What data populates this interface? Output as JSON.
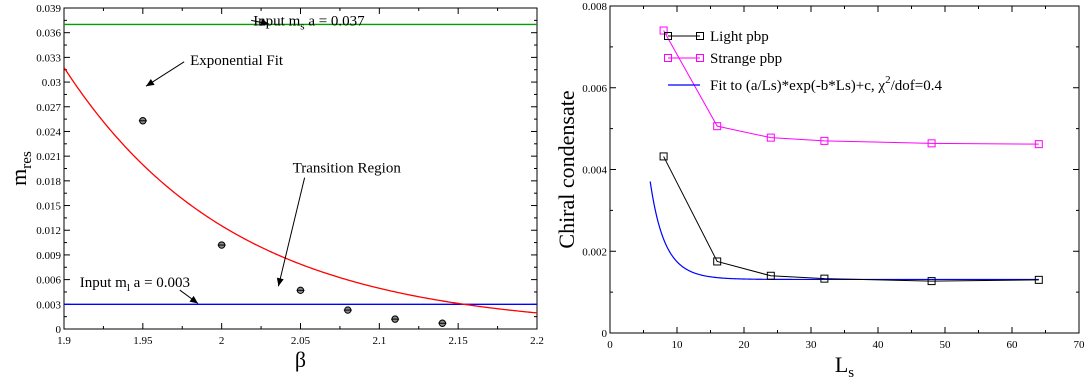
{
  "chart_data": [
    {
      "type": "scatter",
      "xlabel": "β",
      "ylabel_main": "m",
      "ylabel_sub": "res",
      "xlim": [
        1.9,
        2.2
      ],
      "ylim": [
        0,
        0.039
      ],
      "x_ticks": [
        1.9,
        1.95,
        2.0,
        2.05,
        2.1,
        2.15,
        2.2
      ],
      "x_tick_labels": [
        "1.9",
        "1.95",
        "2",
        "2.05",
        "2.1",
        "2.15",
        "2.2"
      ],
      "y_ticks": [
        0,
        0.003,
        0.006,
        0.009,
        0.012,
        0.015,
        0.018,
        0.021,
        0.024,
        0.027,
        0.03,
        0.033,
        0.036,
        0.039
      ],
      "y_tick_labels": [
        "0",
        "0.003",
        "0.006",
        "0.009",
        "0.012",
        "0.015",
        "0.018",
        "0.021",
        "0.024",
        "0.027",
        "0.03",
        "0.033",
        "0.036",
        "0.039"
      ],
      "points": [
        {
          "x": 1.95,
          "y": 0.0253
        },
        {
          "x": 2.0,
          "y": 0.0102
        },
        {
          "x": 2.05,
          "y": 0.0047
        },
        {
          "x": 2.08,
          "y": 0.0023
        },
        {
          "x": 2.11,
          "y": 0.0012
        },
        {
          "x": 2.14,
          "y": 0.0007
        }
      ],
      "fit_curve": {
        "color": "#ff0000",
        "a": 1500000,
        "b": 9.3
      },
      "hlines": [
        {
          "y": 0.037,
          "color": "#00a000"
        },
        {
          "y": 0.003,
          "color": "#0000ff"
        }
      ],
      "annotations": [
        {
          "pre": "Input m",
          "sub": "s",
          "post": "a = 0.037",
          "tx": 2.02,
          "ty": 0.0375,
          "ax": 2.03,
          "ay": 0.03705
        },
        {
          "pre": "Exponential Fit",
          "sub": "",
          "post": "",
          "tx": 1.98,
          "ty": 0.0327,
          "ax": 1.952,
          "ay": 0.0295
        },
        {
          "pre": "Transition Region",
          "sub": "",
          "post": "",
          "tx": 2.045,
          "ty": 0.0196,
          "ax": 2.036,
          "ay": 0.0052
        },
        {
          "pre": "Input m",
          "sub": "l",
          "post": "a = 0.003",
          "tx": 1.91,
          "ty": 0.0057,
          "ax": 1.985,
          "ay": 0.0031
        }
      ]
    },
    {
      "type": "line",
      "xlabel_main": "L",
      "xlabel_sub": "s",
      "ylabel": "Chiral condensate",
      "xlim": [
        0,
        70
      ],
      "ylim": [
        0,
        0.008
      ],
      "x_ticks": [
        0,
        10,
        20,
        30,
        40,
        50,
        60,
        70
      ],
      "x_tick_labels": [
        "0",
        "10",
        "20",
        "30",
        "40",
        "50",
        "60",
        "70"
      ],
      "y_ticks": [
        0,
        0.002,
        0.004,
        0.006,
        0.008
      ],
      "y_tick_labels": [
        "0",
        "0.002",
        "0.004",
        "0.006",
        "0.008"
      ],
      "series": [
        {
          "name": "Light pbp",
          "color": "#000000",
          "marker": "square",
          "x": [
            8,
            16,
            24,
            32,
            48,
            64
          ],
          "y": [
            0.00432,
            0.00175,
            0.0014,
            0.00133,
            0.00127,
            0.0013
          ]
        },
        {
          "name": "Strange pbp",
          "color": "#ff00ff",
          "marker": "square",
          "x": [
            8,
            16,
            24,
            32,
            48,
            64
          ],
          "y": [
            0.0074,
            0.00506,
            0.00478,
            0.0047,
            0.00464,
            0.00462
          ]
        }
      ],
      "fit": {
        "legend_pre": "Fit to (a/Ls)*exp(-b*Ls)+c, ",
        "legend_chi": "χ",
        "legend_sup": "2",
        "legend_post": "/dof=0.4",
        "color": "#0000ff",
        "a": 0.087,
        "b": 0.3,
        "c": 0.00131,
        "x_from": 6,
        "x_to": 64
      }
    }
  ]
}
